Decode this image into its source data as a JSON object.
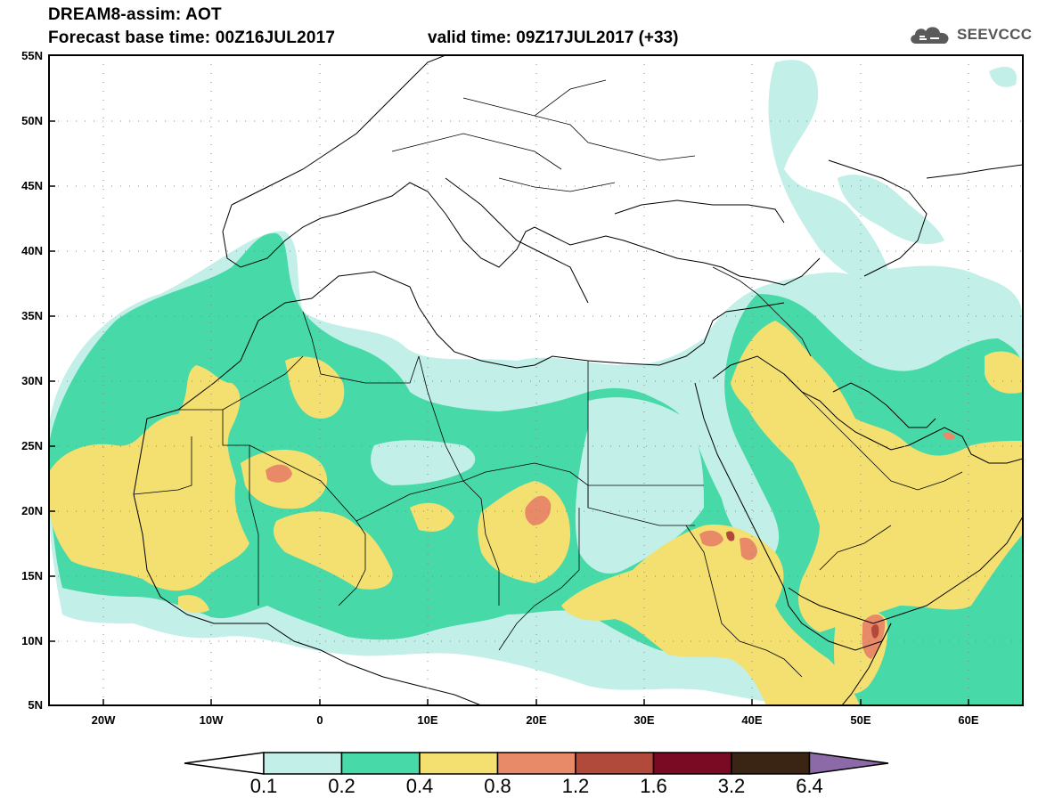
{
  "header": {
    "title": "DREAM8-assim: AOT",
    "base_time": "Forecast base time: 00Z16JUL2017",
    "valid_time": "valid time: 09Z17JUL2017 (+33)"
  },
  "logo": {
    "text": "SEEVCCC",
    "icon": "cloud-icon"
  },
  "map": {
    "lat_labels": [
      "55N",
      "50N",
      "45N",
      "40N",
      "35N",
      "30N",
      "25N",
      "20N",
      "15N",
      "10N",
      "5N"
    ],
    "lon_labels": [
      "20W",
      "10W",
      "0",
      "10E",
      "20E",
      "30E",
      "40E",
      "50E",
      "60E"
    ],
    "lon_range": [
      -25,
      65
    ],
    "lat_range": [
      5,
      55
    ]
  },
  "colorbar": {
    "labels": [
      "0.1",
      "0.2",
      "0.4",
      "0.8",
      "1.2",
      "1.6",
      "3.2",
      "6.4"
    ],
    "colors": [
      "#ffffff",
      "#c2efe8",
      "#48d9a8",
      "#f3e070",
      "#e88a68",
      "#b24a3c",
      "#7a0a24",
      "#3a2414",
      "#8c6aa8"
    ]
  },
  "field_colors": {
    "lowest": "#c2efe8",
    "low": "#48d9a8",
    "mid": "#f3e070",
    "high": "#e88a68",
    "very_high": "#b24a3c"
  }
}
